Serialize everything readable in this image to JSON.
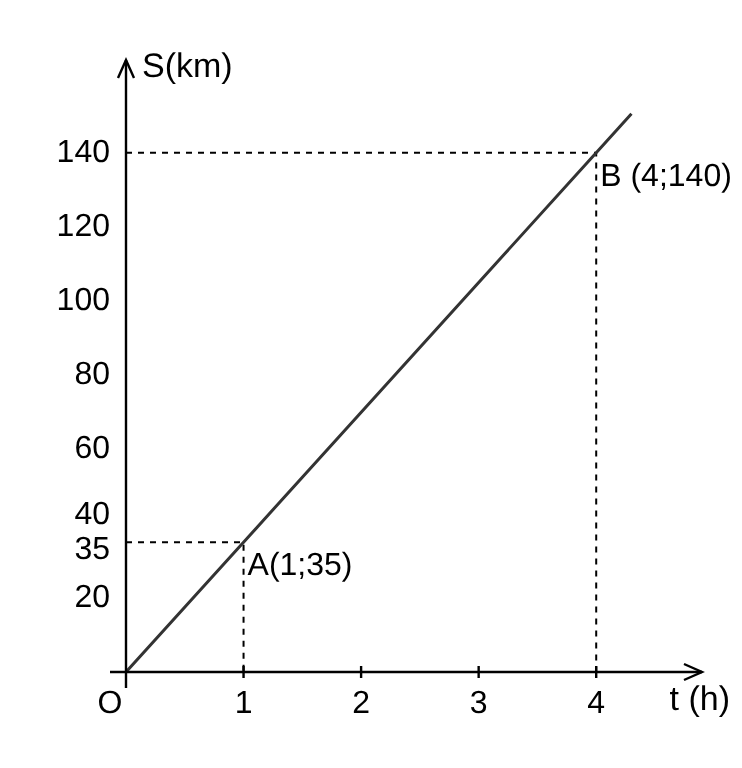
{
  "chart_data": {
    "type": "line",
    "xlabel": "t (h)",
    "ylabel": "S(km)",
    "x": [
      0,
      1,
      4,
      4.3
    ],
    "series": [
      {
        "color": "#333333",
        "values": [
          0,
          35,
          140,
          150.5
        ]
      },
      {
        "type": "line",
        "x": [
          0,
          1,
          1
        ],
        "values": [
          35,
          35,
          0
        ],
        "color": "#000000",
        "line_style": "dashed"
      },
      {
        "type": "line",
        "x": [
          0,
          4,
          4
        ],
        "values": [
          140,
          140,
          0
        ],
        "color": "#000000",
        "line_style": "dashed"
      }
    ],
    "xlim": [
      0,
      4.9
    ],
    "ylim": [
      0,
      165
    ],
    "xticks": [
      {
        "value": 0,
        "label": "O"
      },
      1,
      2,
      3,
      4
    ],
    "yticks": [
      20,
      35,
      40,
      60,
      80,
      100,
      120,
      140
    ],
    "annotations": [
      {
        "text": "A(1;35)",
        "x": 1,
        "y": 35
      },
      {
        "text": "B (4;140)",
        "x": 4,
        "y": 140
      }
    ],
    "grid": false,
    "legend": false,
    "marker": "none",
    "line_style": "solid"
  }
}
